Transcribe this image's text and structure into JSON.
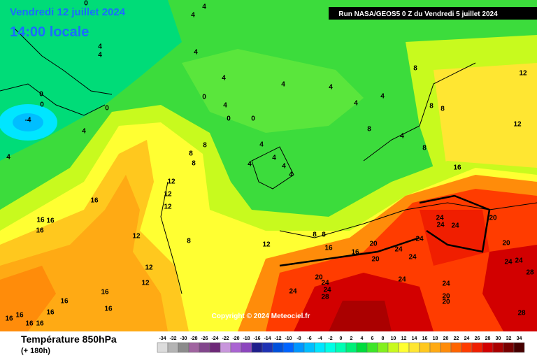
{
  "header": {
    "date": "Vendredi 12 juillet 2024",
    "time": "14:00 locale",
    "run": "Run NASA/GEOS5 0 Z du Vendredi 5 juillet 2024"
  },
  "map": {
    "copyright": "Copyright © 2024 Meteociel.fr",
    "contour_labels": [
      "0",
      "4",
      "4",
      "4",
      "4",
      "4",
      "0",
      "0",
      "0",
      "-4",
      "4",
      "4",
      "4",
      "4",
      "0",
      "4",
      "0",
      "0",
      "4",
      "4",
      "8",
      "8",
      "8",
      "12",
      "12",
      "8",
      "4",
      "8",
      "8",
      "8",
      "8",
      "4",
      "4",
      "4",
      "4",
      "4",
      "4",
      "16",
      "12",
      "12",
      "12",
      "16",
      "16",
      "16",
      "16",
      "12",
      "8",
      "12",
      "8",
      "8",
      "16",
      "16",
      "20",
      "20",
      "24",
      "24",
      "24",
      "24",
      "20",
      "20",
      "24",
      "24",
      "12",
      "12",
      "16",
      "16",
      "16",
      "16",
      "20",
      "24",
      "24",
      "24",
      "28",
      "24",
      "24",
      "20",
      "20",
      "24",
      "24",
      "28",
      "28",
      "16",
      "16",
      "16",
      "16"
    ]
  },
  "legend": {
    "title": "Température 850hPa",
    "subtitle": "(+ 180h)",
    "values": [
      -34,
      -32,
      -30,
      -28,
      -26,
      -24,
      -22,
      -20,
      -18,
      -16,
      -14,
      -12,
      -10,
      -8,
      -6,
      -4,
      -2,
      0,
      2,
      4,
      6,
      8,
      10,
      12,
      14,
      16,
      18,
      20,
      22,
      24,
      26,
      28,
      30,
      32,
      34
    ],
    "colors": [
      "#dcdcdc",
      "#b4b4b4",
      "#8c8c8c",
      "#a064a0",
      "#82468c",
      "#6e2878",
      "#c896dc",
      "#aa64d2",
      "#8c46be",
      "#1e1e8c",
      "#1e32b4",
      "#0050dc",
      "#0064ff",
      "#0096ff",
      "#00beff",
      "#00e6ff",
      "#00ffe6",
      "#00ffb4",
      "#00f078",
      "#00dc3c",
      "#3ce628",
      "#82f01e",
      "#c8fa1e",
      "#ffff32",
      "#ffe632",
      "#ffc81e",
      "#ffaa14",
      "#ff8c0a",
      "#ff6400",
      "#ff3c00",
      "#f01e00",
      "#d20000",
      "#aa0000",
      "#780000",
      "#460000"
    ]
  }
}
